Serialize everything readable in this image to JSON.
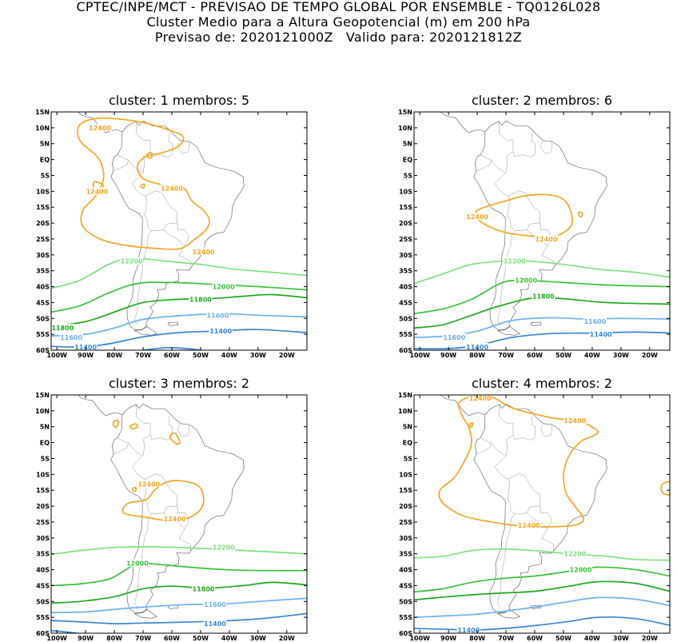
{
  "header": {
    "line1": "CPTEC/INPE/MCT - PREVISAO DE TEMPO GLOBAL POR ENSEMBLE - TQ0126L028",
    "line2": "Cluster Medio para a Altura Geopotencial (m) em 200 hPa",
    "line3": "Previsao de: 2020121000Z   Valido para: 2020121812Z"
  },
  "colors": {
    "c12400": "#f5a623",
    "c12200": "#7fe07f",
    "c12000": "#3cc03c",
    "c11800": "#1fa81f",
    "c11600": "#6fb0f0",
    "c11400": "#3a86d8"
  },
  "axes": {
    "lon_labels": [
      "100W",
      "90W",
      "80W",
      "70W",
      "60W",
      "50W",
      "40W",
      "30W",
      "20W"
    ],
    "lat_labels": [
      "15N",
      "10N",
      "5N",
      "EQ",
      "5S",
      "10S",
      "15S",
      "20S",
      "25S",
      "30S",
      "35S",
      "40S",
      "45S",
      "50S",
      "55S",
      "60S"
    ]
  },
  "panels": [
    {
      "title": "cluster: 1   membros: 5",
      "labels": [
        {
          "text": "12400",
          "lon": -85,
          "lat": 10,
          "lvl": "c12400"
        },
        {
          "text": "12400",
          "lon": -86,
          "lat": -10,
          "lvl": "c12400"
        },
        {
          "text": "12400",
          "lon": -60,
          "lat": -9,
          "lvl": "c12400"
        },
        {
          "text": "12400",
          "lon": -49,
          "lat": -29,
          "lvl": "c12400"
        },
        {
          "text": "12200",
          "lon": -74,
          "lat": -32,
          "lvl": "c12200"
        },
        {
          "text": "12000",
          "lon": -42,
          "lat": -40,
          "lvl": "c12000"
        },
        {
          "text": "11800",
          "lon": -50,
          "lat": -44,
          "lvl": "c11800"
        },
        {
          "text": "11800",
          "lon": -98,
          "lat": -53,
          "lvl": "c11800"
        },
        {
          "text": "11600",
          "lon": -44,
          "lat": -49,
          "lvl": "c11600"
        },
        {
          "text": "11600",
          "lon": -95,
          "lat": -56,
          "lvl": "c11600"
        },
        {
          "text": "11400",
          "lon": -43,
          "lat": -54,
          "lvl": "c11400"
        },
        {
          "text": "11400",
          "lon": -90,
          "lat": -59,
          "lvl": "c11400"
        }
      ]
    },
    {
      "title": "cluster: 2   membros: 6",
      "labels": [
        {
          "text": "12400",
          "lon": -80,
          "lat": -18,
          "lvl": "c12400"
        },
        {
          "text": "12400",
          "lon": -56,
          "lat": -25,
          "lvl": "c12400"
        },
        {
          "text": "12200",
          "lon": -67,
          "lat": -32,
          "lvl": "c12200"
        },
        {
          "text": "12000",
          "lon": -63,
          "lat": -38,
          "lvl": "c12000"
        },
        {
          "text": "11800",
          "lon": -57,
          "lat": -43,
          "lvl": "c11800"
        },
        {
          "text": "11600",
          "lon": -39,
          "lat": -51,
          "lvl": "c11600"
        },
        {
          "text": "11600",
          "lon": -88,
          "lat": -56,
          "lvl": "c11600"
        },
        {
          "text": "11400",
          "lon": -37,
          "lat": -55,
          "lvl": "c11400"
        },
        {
          "text": "11400",
          "lon": -80,
          "lat": -59,
          "lvl": "c11400"
        }
      ]
    },
    {
      "title": "cluster: 3   membros: 2",
      "labels": [
        {
          "text": "12400",
          "lon": -68,
          "lat": -13,
          "lvl": "c12400"
        },
        {
          "text": "12400",
          "lon": -59,
          "lat": -24,
          "lvl": "c12400"
        },
        {
          "text": "12200",
          "lon": -42,
          "lat": -33,
          "lvl": "c12200"
        },
        {
          "text": "12000",
          "lon": -72,
          "lat": -38,
          "lvl": "c12000"
        },
        {
          "text": "11800",
          "lon": -49,
          "lat": -46,
          "lvl": "c11800"
        },
        {
          "text": "11600",
          "lon": -45,
          "lat": -51,
          "lvl": "c11600"
        },
        {
          "text": "11400",
          "lon": -45,
          "lat": -57,
          "lvl": "c11400"
        }
      ]
    },
    {
      "title": "cluster: 4   membros: 2",
      "labels": [
        {
          "text": "12400",
          "lon": -79,
          "lat": 14,
          "lvl": "c12400"
        },
        {
          "text": "12400",
          "lon": -46,
          "lat": 7,
          "lvl": "c12400"
        },
        {
          "text": "12400",
          "lon": -62,
          "lat": -26,
          "lvl": "c12400"
        },
        {
          "text": "12200",
          "lon": -46,
          "lat": -35,
          "lvl": "c12200"
        },
        {
          "text": "12000",
          "lon": -44,
          "lat": -40,
          "lvl": "c12000"
        },
        {
          "text": "11400",
          "lon": -83,
          "lat": -59,
          "lvl": "c11400"
        }
      ]
    }
  ]
}
